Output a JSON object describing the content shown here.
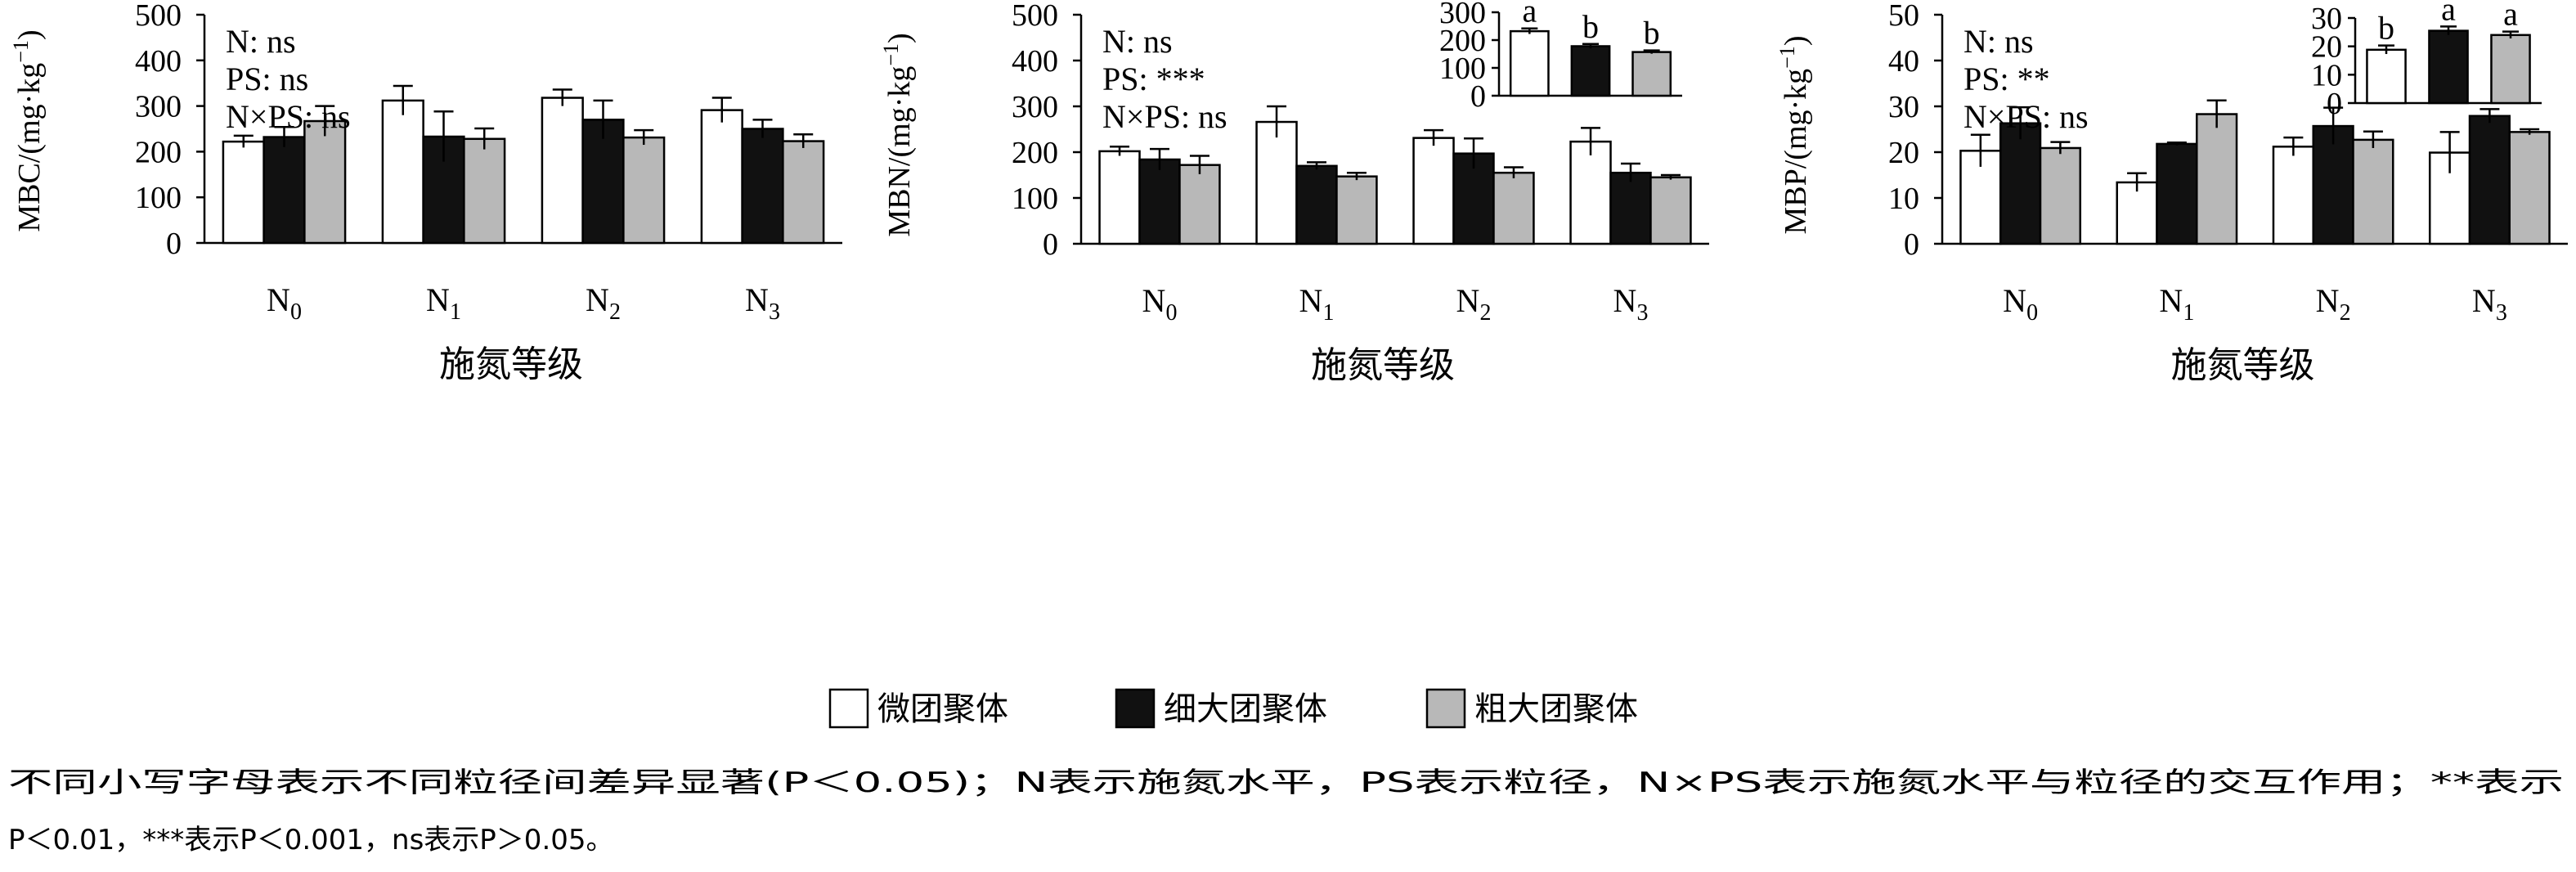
{
  "legend": {
    "items": [
      {
        "label": "微团聚体",
        "color": "#ffffff"
      },
      {
        "label": "细大团聚体",
        "color": "#111111"
      },
      {
        "label": "粗大团聚体",
        "color": "#b8b8b8"
      }
    ]
  },
  "caption": {
    "line1": "不同小写字母表示不同粒径间差异显著(P＜0.05)；N表示施氮水平，PS表示粒径，N×PS表示施氮水平与粒径的交互作用；**表示",
    "line2": "P＜0.01，***表示P＜0.001，ns表示P＞0.05。"
  },
  "chart_data": [
    {
      "type": "bar",
      "categories": [
        "N0",
        "N1",
        "N2",
        "N3"
      ],
      "xlabel": "施氮等级",
      "ylabel": "MBC/(mg·kg⁻¹)",
      "ylim": [
        0,
        500
      ],
      "yticks": [
        0,
        100,
        200,
        300,
        400,
        500
      ],
      "annotations": [
        "N: ns",
        "PS: ns",
        "N×PS: ns"
      ],
      "series": [
        {
          "name": "微团聚体",
          "values": [
            222,
            312,
            318,
            291
          ],
          "errors": [
            13,
            32,
            18,
            27
          ]
        },
        {
          "name": "细大团聚体",
          "values": [
            232,
            233,
            270,
            250
          ],
          "errors": [
            22,
            55,
            42,
            20
          ]
        },
        {
          "name": "粗大团聚体",
          "values": [
            267,
            228,
            231,
            223
          ],
          "errors": [
            33,
            23,
            16,
            15
          ]
        }
      ]
    },
    {
      "type": "bar",
      "categories": [
        "N0",
        "N1",
        "N2",
        "N3"
      ],
      "xlabel": "施氮等级",
      "ylabel": "MBN/(mg·kg⁻¹)",
      "ylim": [
        0,
        500
      ],
      "yticks": [
        0,
        100,
        200,
        300,
        400,
        500
      ],
      "annotations": [
        "N: ns",
        "PS: ***",
        "N×PS: ns"
      ],
      "series": [
        {
          "name": "微团聚体",
          "values": [
            202,
            266,
            231,
            223
          ],
          "errors": [
            10,
            34,
            17,
            30
          ]
        },
        {
          "name": "细大团聚体",
          "values": [
            184,
            170,
            197,
            155
          ],
          "errors": [
            23,
            8,
            33,
            20
          ]
        },
        {
          "name": "粗大团聚体",
          "values": [
            172,
            147,
            155,
            145
          ],
          "errors": [
            20,
            8,
            12,
            5
          ]
        }
      ],
      "inset": {
        "ylim": [
          0,
          300
        ],
        "yticks": [
          0,
          100,
          200,
          300
        ],
        "values": [
          232,
          178,
          157
        ],
        "errors": [
          10,
          8,
          6
        ],
        "letters": [
          "a",
          "b",
          "b"
        ]
      }
    },
    {
      "type": "bar",
      "categories": [
        "N0",
        "N1",
        "N2",
        "N3"
      ],
      "xlabel": "施氮等级",
      "ylabel": "MBP/(mg·kg⁻¹)",
      "ylim": [
        0,
        50
      ],
      "yticks": [
        0,
        10,
        20,
        30,
        40,
        50
      ],
      "annotations": [
        "N: ns",
        "PS: **",
        "N×PS: ns"
      ],
      "series": [
        {
          "name": "微团聚体",
          "values": [
            20.3,
            13.4,
            21.2,
            19.9
          ],
          "errors": [
            3.5,
            2.0,
            2.0,
            4.5
          ]
        },
        {
          "name": "细大团聚体",
          "values": [
            26.3,
            21.8,
            25.7,
            27.9
          ],
          "errors": [
            3.5,
            0.3,
            4.0,
            1.5
          ]
        },
        {
          "name": "粗大团聚体",
          "values": [
            20.9,
            28.3,
            22.7,
            24.4
          ],
          "errors": [
            1.3,
            3.0,
            1.8,
            0.6
          ]
        }
      ],
      "inset": {
        "ylim": [
          0,
          30
        ],
        "yticks": [
          0,
          10,
          20,
          30
        ],
        "values": [
          18.8,
          25.5,
          24.0
        ],
        "errors": [
          1.5,
          1.5,
          1.2
        ],
        "letters": [
          "b",
          "a",
          "a"
        ]
      }
    }
  ]
}
